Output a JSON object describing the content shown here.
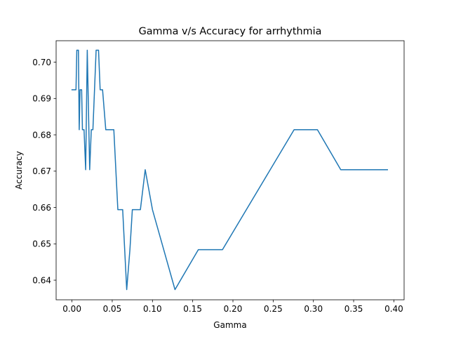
{
  "chart_data": {
    "type": "line",
    "title": "Gamma v/s Accuracy for arrhythmia",
    "xlabel": "Gamma",
    "ylabel": "Accuracy",
    "xlim": [
      -0.0197,
      0.4127
    ],
    "ylim": [
      0.6346,
      0.7059
    ],
    "xticks": [
      0.0,
      0.05,
      0.1,
      0.15,
      0.2,
      0.25,
      0.3,
      0.35,
      0.4
    ],
    "xtick_labels": [
      "0.00",
      "0.05",
      "0.10",
      "0.15",
      "0.20",
      "0.25",
      "0.30",
      "0.35",
      "0.40"
    ],
    "yticks": [
      0.64,
      0.65,
      0.66,
      0.67,
      0.68,
      0.69,
      0.7
    ],
    "ytick_labels": [
      "0.64",
      "0.65",
      "0.66",
      "0.67",
      "0.68",
      "0.69",
      "0.70"
    ],
    "grid": false,
    "line_color": "#1f77b4",
    "series": [
      {
        "x": [
          0.0,
          0.005,
          0.006,
          0.008,
          0.009,
          0.01,
          0.012,
          0.013,
          0.015,
          0.017,
          0.019,
          0.022,
          0.024,
          0.026,
          0.03,
          0.033,
          0.035,
          0.038,
          0.042,
          0.052,
          0.057,
          0.063,
          0.068,
          0.072,
          0.075,
          0.079,
          0.085,
          0.091,
          0.1,
          0.128,
          0.157,
          0.187,
          0.276,
          0.305,
          0.334,
          0.392
        ],
        "y": [
          0.6924,
          0.6924,
          0.7033,
          0.7033,
          0.6814,
          0.6924,
          0.6924,
          0.6814,
          0.6814,
          0.6704,
          0.7033,
          0.6704,
          0.6814,
          0.6814,
          0.7033,
          0.7033,
          0.6924,
          0.6924,
          0.6814,
          0.6814,
          0.6594,
          0.6594,
          0.6374,
          0.6484,
          0.6594,
          0.6594,
          0.6594,
          0.6704,
          0.6594,
          0.6374,
          0.6484,
          0.6484,
          0.6814,
          0.6814,
          0.6704,
          0.6704
        ]
      }
    ]
  }
}
